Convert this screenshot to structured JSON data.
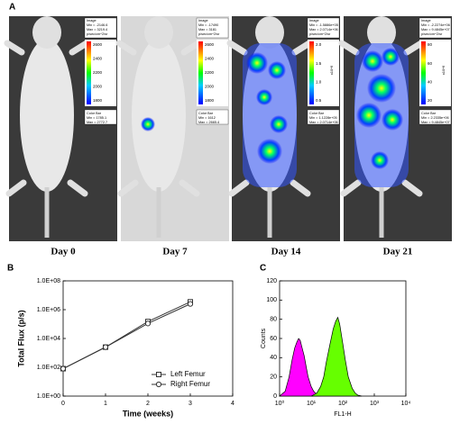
{
  "panel_a": {
    "label": "A",
    "images": [
      {
        "day": "Day 0",
        "image_box": [
          "Image",
          "Min = -2146.6",
          "Max = 3219.4",
          "p/sec/cm^2/sr"
        ],
        "scale_ticks": [
          "2600",
          "2400",
          "2200",
          "2000",
          "1800"
        ],
        "color_bar_box": [
          "Color Bar",
          "Min = 1785.1",
          "Max = 2772.7"
        ]
      },
      {
        "day": "Day 7",
        "image_box": [
          "Image",
          "Min = -17490",
          "Max = 3181",
          "p/sec/cm^2/sr"
        ],
        "scale_ticks": [
          "2600",
          "2400",
          "2200",
          "2000",
          "1800"
        ],
        "color_bar_box": [
          "Color Bar",
          "Min = 1612",
          "Max = 2665.4"
        ]
      },
      {
        "day": "Day 14",
        "image_box": [
          "Image",
          "Min = -1.5886e+05",
          "Max = 2.0714e+06",
          "p/sec/cm^2/sr"
        ],
        "scale_ticks": [
          "2.0",
          "1.5",
          "1.0",
          "0.5"
        ],
        "scale_unit": "x10^6",
        "color_bar_box": [
          "Color Bar",
          "Min = 1.1228e+05",
          "Max = 2.0714e+06"
        ]
      },
      {
        "day": "Day 21",
        "image_box": [
          "Image",
          "Min = -2.2274e+06",
          "Max = 9.4845e+07",
          "p/sec/cm^2/sr"
        ],
        "scale_ticks": [
          "80",
          "60",
          "40",
          "20"
        ],
        "scale_unit": "x10^6",
        "color_bar_box": [
          "Color Bar",
          "Min = 2.2335e+06",
          "Max = 9.4845e+07"
        ]
      }
    ]
  },
  "chart_data": [
    {
      "type": "line",
      "panel_label": "B",
      "x_label": "Time (weeks)",
      "y_label": "Total Flux (p/s)",
      "x": [
        0,
        1,
        2,
        3
      ],
      "series": [
        {
          "name": "Left Femur",
          "color": "#333333",
          "marker": "square",
          "values": [
            80,
            2500,
            150000,
            3500000
          ]
        },
        {
          "name": "Right Femur",
          "color": "#333333",
          "marker": "circle",
          "values": [
            80,
            2500,
            110000,
            2500000
          ]
        }
      ],
      "xlim": [
        0,
        4
      ],
      "xticks": [
        0,
        1,
        2,
        3,
        4
      ],
      "ylim": [
        1,
        100000000
      ],
      "y_log": true,
      "yticks": [
        {
          "value": 1,
          "label": "1.0E+00"
        },
        {
          "value": 100,
          "label": "1.0E+02"
        },
        {
          "value": 10000,
          "label": "1.0E+04"
        },
        {
          "value": 1000000,
          "label": "1.0E+06"
        },
        {
          "value": 100000000,
          "label": "1.0E+08"
        }
      ],
      "legend": "lower right",
      "grid": false
    },
    {
      "type": "histogram",
      "panel_label": "C",
      "x_label": "FL1-H",
      "y_label": "Counts",
      "series": [
        {
          "color": "#ff00ff",
          "x": [
            1,
            1.5,
            2,
            2.5,
            3,
            3.5,
            4,
            4.5,
            5,
            6,
            7,
            8,
            10,
            12,
            15,
            20
          ],
          "values": [
            0,
            5,
            20,
            38,
            50,
            56,
            60,
            58,
            52,
            42,
            30,
            20,
            10,
            5,
            2,
            0
          ]
        },
        {
          "color": "#66ff00",
          "x": [
            10,
            15,
            20,
            25,
            30,
            40,
            50,
            60,
            70,
            80,
            100,
            120,
            150,
            200,
            250,
            300,
            400
          ],
          "values": [
            0,
            3,
            10,
            20,
            35,
            55,
            70,
            78,
            82,
            75,
            55,
            38,
            20,
            8,
            3,
            1,
            0
          ]
        }
      ],
      "xlim": [
        1,
        10000
      ],
      "x_log": true,
      "xticks": [
        {
          "value": 1,
          "label": "10⁰"
        },
        {
          "value": 10,
          "label": "10¹"
        },
        {
          "value": 100,
          "label": "10²"
        },
        {
          "value": 1000,
          "label": "10³"
        },
        {
          "value": 10000,
          "label": "10⁴"
        }
      ],
      "ylim": [
        0,
        120
      ],
      "yticks": [
        0,
        20,
        40,
        60,
        80,
        100,
        120
      ],
      "grid": false
    }
  ]
}
